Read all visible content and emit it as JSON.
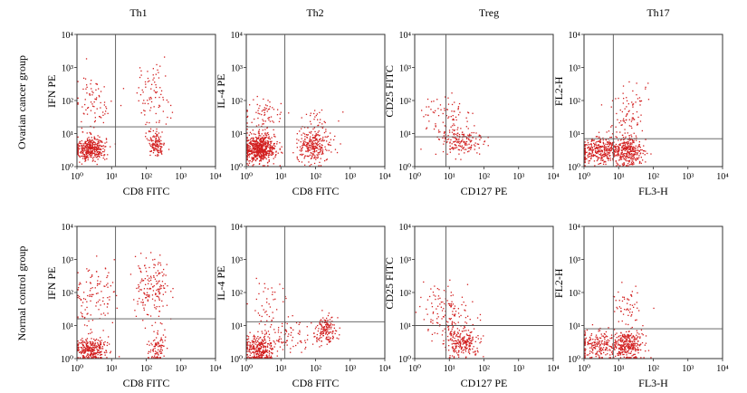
{
  "column_titles": [
    "Th1",
    "Th2",
    "Treg",
    "Th17"
  ],
  "row_labels": [
    "Ovarian cancer group",
    "Normal control group"
  ],
  "tick_labels": [
    "10⁰",
    "10¹",
    "10²",
    "10³",
    "10⁴"
  ],
  "colors": {
    "dot": "#d21f1f",
    "frame": "#333333",
    "gate": "#555555"
  },
  "chart_data": [
    {
      "type": "scatter",
      "panel": "Th1",
      "group": "Ovarian cancer group",
      "xlabel": "CD8 FITC",
      "ylabel": "IFN PE",
      "xlim": [
        1,
        10000
      ],
      "ylim": [
        1,
        10000
      ],
      "log_scale": true,
      "grid": false,
      "gate": {
        "x": 13,
        "y": 16
      },
      "clusters": [
        {
          "cx": 2.5,
          "cy": 3.5,
          "sx": 0.22,
          "sy": 0.18,
          "n": 380
        },
        {
          "cx": 200,
          "cy": 5,
          "sx": 0.12,
          "sy": 0.2,
          "n": 130
        },
        {
          "cx": 3,
          "cy": 80,
          "sx": 0.3,
          "sy": 0.45,
          "n": 80
        },
        {
          "cx": 150,
          "cy": 150,
          "sx": 0.25,
          "sy": 0.45,
          "n": 80
        }
      ]
    },
    {
      "type": "scatter",
      "panel": "Th2",
      "group": "Ovarian cancer group",
      "xlabel": "CD8 FITC",
      "ylabel": "IL-4 PE",
      "xlim": [
        1,
        10000
      ],
      "ylim": [
        1,
        10000
      ],
      "log_scale": true,
      "grid": false,
      "gate": {
        "x": 13,
        "y": 16
      },
      "clusters": [
        {
          "cx": 2.5,
          "cy": 3.5,
          "sx": 0.22,
          "sy": 0.2,
          "n": 600
        },
        {
          "cx": 90,
          "cy": 4,
          "sx": 0.25,
          "sy": 0.22,
          "n": 260
        },
        {
          "cx": 3,
          "cy": 30,
          "sx": 0.3,
          "sy": 0.35,
          "n": 80
        },
        {
          "cx": 100,
          "cy": 20,
          "sx": 0.25,
          "sy": 0.25,
          "n": 40
        }
      ]
    },
    {
      "type": "scatter",
      "panel": "Treg",
      "group": "Ovarian cancer group",
      "xlabel": "CD127 PE",
      "ylabel": "CD25 FITC",
      "xlim": [
        1,
        10000
      ],
      "ylim": [
        1,
        10000
      ],
      "log_scale": true,
      "grid": false,
      "gate": {
        "x": 8,
        "y": 8
      },
      "clusters": [
        {
          "cx": 20,
          "cy": 6,
          "sx": 0.35,
          "sy": 0.25,
          "n": 180
        },
        {
          "cx": 8,
          "cy": 30,
          "sx": 0.4,
          "sy": 0.35,
          "n": 70
        }
      ]
    },
    {
      "type": "scatter",
      "panel": "Th17",
      "group": "Ovarian cancer group",
      "xlabel": "FL3-H",
      "ylabel": "FL2-H",
      "xlim": [
        1,
        10000
      ],
      "ylim": [
        1,
        10000
      ],
      "log_scale": true,
      "grid": false,
      "gate": {
        "x": 7,
        "y": 7
      },
      "clusters": [
        {
          "cx": 3,
          "cy": 3,
          "sx": 0.35,
          "sy": 0.2,
          "n": 350
        },
        {
          "cx": 20,
          "cy": 3,
          "sx": 0.2,
          "sy": 0.22,
          "n": 300
        },
        {
          "cx": 20,
          "cy": 40,
          "sx": 0.25,
          "sy": 0.45,
          "n": 90
        }
      ]
    },
    {
      "type": "scatter",
      "panel": "Th1",
      "group": "Normal control group",
      "xlabel": "CD8 FITC",
      "ylabel": "IFN PE",
      "xlim": [
        1,
        10000
      ],
      "ylim": [
        1,
        10000
      ],
      "log_scale": true,
      "grid": false,
      "gate": {
        "x": 13,
        "y": 16
      },
      "clusters": [
        {
          "cx": 2.5,
          "cy": 2,
          "sx": 0.22,
          "sy": 0.18,
          "n": 280
        },
        {
          "cx": 200,
          "cy": 2,
          "sx": 0.12,
          "sy": 0.25,
          "n": 90
        },
        {
          "cx": 3,
          "cy": 80,
          "sx": 0.3,
          "sy": 0.5,
          "n": 110
        },
        {
          "cx": 150,
          "cy": 150,
          "sx": 0.25,
          "sy": 0.45,
          "n": 160
        }
      ]
    },
    {
      "type": "scatter",
      "panel": "Th2",
      "group": "Normal control group",
      "xlabel": "CD8 FITC",
      "ylabel": "IL-4 PE",
      "xlim": [
        1,
        10000
      ],
      "ylim": [
        1,
        10000
      ],
      "log_scale": true,
      "grid": false,
      "gate": {
        "x": 13,
        "y": 13
      },
      "clusters": [
        {
          "cx": 2.5,
          "cy": 2,
          "sx": 0.22,
          "sy": 0.2,
          "n": 300
        },
        {
          "cx": 200,
          "cy": 8,
          "sx": 0.15,
          "sy": 0.2,
          "n": 160
        },
        {
          "cx": 20,
          "cy": 4,
          "sx": 0.35,
          "sy": 0.25,
          "n": 70
        },
        {
          "cx": 5,
          "cy": 50,
          "sx": 0.4,
          "sy": 0.4,
          "n": 50
        }
      ]
    },
    {
      "type": "scatter",
      "panel": "Treg",
      "group": "Normal control group",
      "xlabel": "CD127 PE",
      "ylabel": "CD25 FITC",
      "xlim": [
        1,
        10000
      ],
      "ylim": [
        1,
        10000
      ],
      "log_scale": true,
      "grid": false,
      "gate": {
        "x": 8,
        "y": 10
      },
      "clusters": [
        {
          "cx": 25,
          "cy": 3,
          "sx": 0.25,
          "sy": 0.2,
          "n": 220
        },
        {
          "cx": 10,
          "cy": 15,
          "sx": 0.35,
          "sy": 0.4,
          "n": 110
        },
        {
          "cx": 5,
          "cy": 60,
          "sx": 0.3,
          "sy": 0.3,
          "n": 40
        }
      ]
    },
    {
      "type": "scatter",
      "panel": "Th17",
      "group": "Normal control group",
      "xlabel": "FL3-H",
      "ylabel": "FL2-H",
      "xlim": [
        1,
        10000
      ],
      "ylim": [
        1,
        10000
      ],
      "log_scale": true,
      "grid": false,
      "gate": {
        "x": 7,
        "y": 8
      },
      "clusters": [
        {
          "cx": 3,
          "cy": 2.5,
          "sx": 0.35,
          "sy": 0.2,
          "n": 240
        },
        {
          "cx": 20,
          "cy": 2.5,
          "sx": 0.2,
          "sy": 0.22,
          "n": 260
        },
        {
          "cx": 20,
          "cy": 30,
          "sx": 0.25,
          "sy": 0.4,
          "n": 60
        }
      ]
    }
  ]
}
